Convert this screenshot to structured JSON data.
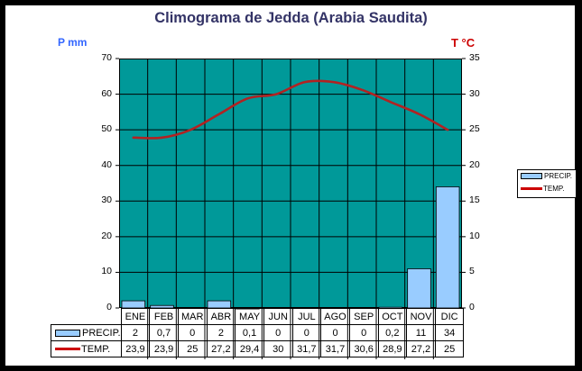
{
  "chart_data": {
    "type": "bar+line",
    "title": "Climograma de Jedda (Arabia Saudita)",
    "categories": [
      "ENE",
      "FEB",
      "MAR",
      "ABR",
      "MAY",
      "JUN",
      "JUL",
      "AGO",
      "SEP",
      "OCT",
      "NOV",
      "DIC"
    ],
    "series": [
      {
        "name": "PRECIP.",
        "type": "bar",
        "axis": "left",
        "color": "#99ccff",
        "values": [
          2,
          0.7,
          0,
          2,
          0.1,
          0,
          0,
          0,
          0,
          0.2,
          11,
          34
        ],
        "labels": [
          "2",
          "0,7",
          "0",
          "2",
          "0,1",
          "0",
          "0",
          "0",
          "0",
          "0,2",
          "11",
          "34"
        ]
      },
      {
        "name": "TEMP.",
        "type": "line",
        "axis": "right",
        "color": "#cc0000",
        "values": [
          23.9,
          23.9,
          25,
          27.2,
          29.4,
          30,
          31.7,
          31.7,
          30.6,
          28.9,
          27.2,
          25
        ],
        "labels": [
          "23,9",
          "23,9",
          "25",
          "27,2",
          "29,4",
          "30",
          "31,7",
          "31,7",
          "30,6",
          "28,9",
          "27,2",
          "25"
        ]
      }
    ],
    "ylabel_left": "P mm",
    "ylabel_right": "T °C",
    "ylim_left": [
      0,
      70
    ],
    "ylim_right": [
      0,
      35
    ],
    "yticks_left": [
      "70",
      "60",
      "50",
      "40",
      "30",
      "20",
      "10",
      "0"
    ],
    "yticks_right": [
      "35",
      "30",
      "25",
      "20",
      "15",
      "10",
      "5",
      "0"
    ],
    "plot_bg": "#009999",
    "grid": true,
    "legend_position": "right",
    "data_table": true
  },
  "legend": {
    "precip": "PRECIP.",
    "temp": "TEMP."
  }
}
